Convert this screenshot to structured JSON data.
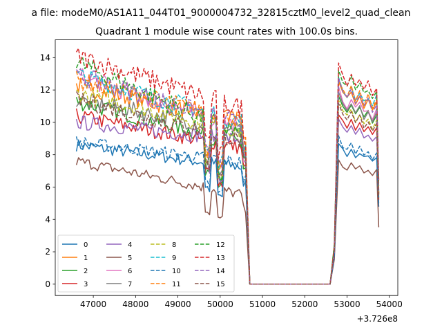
{
  "chart_data": {
    "type": "line",
    "suptitle": "a file: modeM0/AS1A11_044T01_9000004732_32815cztM0_level2_quad_clean",
    "title": "Quadrant 1 module wise count rates with 100.0s bins.",
    "xlabel": "",
    "ylabel": "",
    "x_offset_label": "+3.726e8",
    "xlim": [
      46100,
      54200
    ],
    "ylim": [
      -0.7,
      15.1
    ],
    "x_ticks": [
      47000,
      48000,
      49000,
      50000,
      51000,
      52000,
      53000,
      54000
    ],
    "x_tick_labels": [
      "47000",
      "48000",
      "49000",
      "50000",
      "51000",
      "52000",
      "53000",
      "54000"
    ],
    "y_ticks": [
      0,
      2,
      4,
      6,
      8,
      10,
      12,
      14
    ],
    "y_tick_labels": [
      "0",
      "2",
      "4",
      "6",
      "8",
      "10",
      "12",
      "14"
    ],
    "grid": false,
    "legend_position": "lower-left",
    "legend_columns": 4,
    "segment1": {
      "x_start": 46600,
      "x_end": 50600
    },
    "segment2": {
      "x_start": 52700,
      "x_end": 53750
    },
    "gap": {
      "x_values": [
        50700,
        50800,
        52600
      ]
    },
    "series": [
      {
        "name": "0",
        "color": "#1f77b4",
        "dash": "solid",
        "seg1_start": 8.6,
        "seg1_end": 7.2,
        "seg2_peak": 8.8,
        "seg2_end": 4.8
      },
      {
        "name": "1",
        "color": "#ff7f0e",
        "dash": "solid",
        "seg1_start": 12.3,
        "seg1_end": 9.9,
        "seg2_peak": 12.5,
        "seg2_end": 5.6
      },
      {
        "name": "2",
        "color": "#2ca02c",
        "dash": "solid",
        "seg1_start": 11.3,
        "seg1_end": 8.6,
        "seg2_peak": 11.6,
        "seg2_end": 5.2
      },
      {
        "name": "3",
        "color": "#d62728",
        "dash": "solid",
        "seg1_start": 10.4,
        "seg1_end": 8.4,
        "seg2_peak": 10.6,
        "seg2_end": 5.3
      },
      {
        "name": "4",
        "color": "#9467bd",
        "dash": "solid",
        "seg1_start": 10.0,
        "seg1_end": 8.9,
        "seg2_peak": 10.2,
        "seg2_end": 5.4
      },
      {
        "name": "5",
        "color": "#8c564b",
        "dash": "solid",
        "seg1_start": 7.6,
        "seg1_end": 5.5,
        "seg2_peak": 7.8,
        "seg2_end": 3.6
      },
      {
        "name": "6",
        "color": "#e377c2",
        "dash": "solid",
        "seg1_start": 12.9,
        "seg1_end": 9.6,
        "seg2_peak": 12.0,
        "seg2_end": 5.5
      },
      {
        "name": "7",
        "color": "#7f7f7f",
        "dash": "solid",
        "seg1_start": 11.4,
        "seg1_end": 9.4,
        "seg2_peak": 11.7,
        "seg2_end": 5.5
      },
      {
        "name": "8",
        "color": "#bcbd22",
        "dash": "dashed",
        "seg1_start": 11.8,
        "seg1_end": 9.4,
        "seg2_peak": 11.3,
        "seg2_end": 5.4
      },
      {
        "name": "9",
        "color": "#17becf",
        "dash": "dashed",
        "seg1_start": 12.9,
        "seg1_end": 10.0,
        "seg2_peak": 12.8,
        "seg2_end": 5.8
      },
      {
        "name": "10",
        "color": "#1f77b4",
        "dash": "dashed",
        "seg1_start": 8.8,
        "seg1_end": 7.5,
        "seg2_peak": 9.1,
        "seg2_end": 5.0
      },
      {
        "name": "11",
        "color": "#ff7f0e",
        "dash": "dashed",
        "seg1_start": 12.6,
        "seg1_end": 10.1,
        "seg2_peak": 12.7,
        "seg2_end": 5.7
      },
      {
        "name": "12",
        "color": "#2ca02c",
        "dash": "dashed",
        "seg1_start": 13.7,
        "seg1_end": 9.1,
        "seg2_peak": 13.3,
        "seg2_end": 5.9
      },
      {
        "name": "13",
        "color": "#d62728",
        "dash": "dashed",
        "seg1_start": 14.1,
        "seg1_end": 10.8,
        "seg2_peak": 13.7,
        "seg2_end": 6.2
      },
      {
        "name": "14",
        "color": "#9467bd",
        "dash": "dashed",
        "seg1_start": 12.9,
        "seg1_end": 9.8,
        "seg2_peak": 12.5,
        "seg2_end": 5.6
      },
      {
        "name": "15",
        "color": "#8c564b",
        "dash": "dashed",
        "seg1_start": 11.4,
        "seg1_end": 8.8,
        "seg2_peak": 11.1,
        "seg2_end": 5.3
      }
    ]
  }
}
